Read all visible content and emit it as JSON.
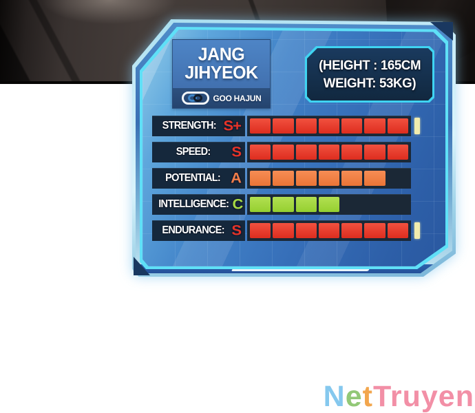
{
  "background": {
    "style": "dark-comic-drapery"
  },
  "panel": {
    "name": {
      "line1": "JANG",
      "line2": "JIHYEOK"
    },
    "link": {
      "label": "GOO HAJUN",
      "icon": "chain-link-icon"
    },
    "info": {
      "line1": "(HEIGHT : 165CM",
      "line2": "WEIGHT: 53KG)"
    },
    "bar": {
      "total_segments": 7
    },
    "marker_color": "#f1ecae",
    "stats": [
      {
        "label": "STRENGTH:",
        "grade": "S+",
        "grade_color": "#e53327",
        "fill": 7,
        "seg_color_top": "#f1513f",
        "seg_color_bottom": "#dd2d1f",
        "marker": true
      },
      {
        "label": "SPEED:",
        "grade": "S",
        "grade_color": "#e53327",
        "fill": 7,
        "seg_color_top": "#f1513f",
        "seg_color_bottom": "#dd2d1f",
        "marker": false
      },
      {
        "label": "POTENTIAL:",
        "grade": "A",
        "grade_color": "#ef7c48",
        "fill": 6,
        "seg_color_top": "#f68d55",
        "seg_color_bottom": "#ea7436",
        "marker": false
      },
      {
        "label": "INTELLIGENCE:",
        "grade": "C",
        "grade_color": "#a6da43",
        "fill": 4,
        "seg_color_top": "#b2e052",
        "seg_color_bottom": "#95cf30",
        "marker": false
      },
      {
        "label": "ENDURANCE:",
        "grade": "S",
        "grade_color": "#e53327",
        "fill": 7,
        "seg_color_top": "#f1513f",
        "seg_color_bottom": "#dd2d1f",
        "marker": true
      }
    ]
  },
  "watermark": {
    "text": "NetTruyen",
    "letters": [
      {
        "ch": "N",
        "color": "#85c8ee"
      },
      {
        "ch": "e",
        "color": "#92c877"
      },
      {
        "ch": "t",
        "color": "#f2a64d"
      },
      {
        "ch": "T",
        "color": "#f28fa6"
      },
      {
        "ch": "r",
        "color": "#f28fa6"
      },
      {
        "ch": "u",
        "color": "#f28fa6"
      },
      {
        "ch": "y",
        "color": "#f28fa6"
      },
      {
        "ch": "e",
        "color": "#f28fa6"
      },
      {
        "ch": "n",
        "color": "#f28fa6"
      }
    ]
  }
}
